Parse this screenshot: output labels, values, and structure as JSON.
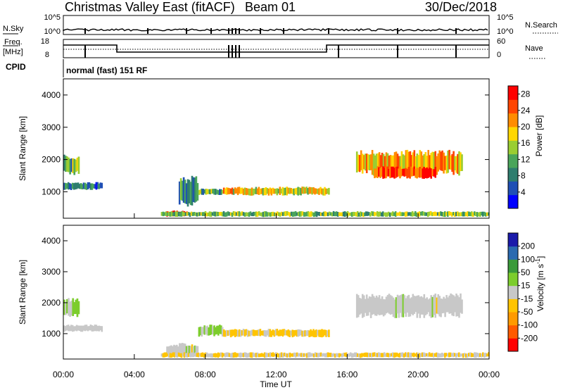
{
  "header": {
    "title": "Christmas Valley East (fitACF)",
    "beam": "Beam 01",
    "date": "30/Dec/2018"
  },
  "noise_panel": {
    "left_label": "N.Sky",
    "right_label": "N.Search",
    "left_ticks": [
      "10^5",
      "10^0"
    ],
    "right_ticks": [
      "10^5",
      "10^0"
    ]
  },
  "freq_panel": {
    "left_label_1": "Freq.",
    "left_label_2": "[MHz]",
    "right_label": "Nave",
    "left_ticks": [
      "18",
      "8"
    ],
    "right_ticks": [
      "60",
      "0"
    ]
  },
  "cpid": {
    "label": "CPID",
    "mode_text": "normal (fast) 151 RF"
  },
  "colors": {
    "power_scale": [
      "#0000ff",
      "#1f4fb5",
      "#2e7d6e",
      "#4aa55a",
      "#9acd32",
      "#ffd700",
      "#ff8c00",
      "#ff4500",
      "#ff0000"
    ],
    "velocity_scale": [
      "#ff0000",
      "#ff5a00",
      "#ff9a00",
      "#ffc400",
      "#c8c8c8",
      "#7ccd2c",
      "#3a9a3a",
      "#2a6ab0",
      "#1a1aaa"
    ],
    "ground_scatter": "#b4b4b4"
  },
  "chart_data": [
    {
      "type": "heatmap",
      "name": "power",
      "xlabel": "",
      "ylabel": "Slant Range [km]",
      "xlim": [
        0,
        24
      ],
      "ylim": [
        180,
        4500
      ],
      "yticks": [
        "1000",
        "2000",
        "3000",
        "4000"
      ],
      "colorbar_label": "Power [dB]",
      "colorbar_ticks": [
        "4",
        "8",
        "12",
        "16",
        "20",
        "24",
        "28"
      ],
      "colorbar_range": [
        0,
        30
      ],
      "regions": [
        {
          "t0": 0.0,
          "t1": 0.9,
          "r0": 1500,
          "r1": 2150,
          "v": 12
        },
        {
          "t0": 0.0,
          "t1": 2.2,
          "r0": 1050,
          "r1": 1300,
          "v": 8
        },
        {
          "t0": 5.8,
          "t1": 7.0,
          "r0": 230,
          "r1": 420,
          "v": 28
        },
        {
          "t0": 6.5,
          "t1": 7.6,
          "r0": 500,
          "r1": 1500,
          "v": 8
        },
        {
          "t0": 7.6,
          "t1": 9.0,
          "r0": 900,
          "r1": 1100,
          "v": 12
        },
        {
          "t0": 9.0,
          "t1": 15.0,
          "r0": 880,
          "r1": 1160,
          "v": 18
        },
        {
          "t0": 5.5,
          "t1": 24.0,
          "r0": 220,
          "r1": 400,
          "v": 14
        },
        {
          "t0": 16.5,
          "t1": 22.5,
          "r0": 1500,
          "r1": 2300,
          "v": 20
        },
        {
          "t0": 17.5,
          "t1": 21.0,
          "r0": 1400,
          "r1": 1800,
          "v": 26
        }
      ]
    },
    {
      "type": "heatmap",
      "name": "velocity",
      "xlabel": "Time UT",
      "ylabel": "Slant Range [km]",
      "xlim": [
        0,
        24
      ],
      "ylim": [
        180,
        4500
      ],
      "yticks": [
        "1000",
        "2000",
        "3000",
        "4000"
      ],
      "xticks": [
        "00:00",
        "04:00",
        "08:00",
        "12:00",
        "16:00",
        "20:00",
        "00:00"
      ],
      "colorbar_label": "Velocity [m s^-1]",
      "colorbar_ticks": [
        "200",
        "100",
        "50",
        "15",
        "-15",
        "-50",
        "-100",
        "-200"
      ],
      "colorbar_range": [
        -250,
        250
      ],
      "regions": [
        {
          "t0": 0.0,
          "t1": 0.9,
          "r0": 1500,
          "r1": 2150,
          "v": 40
        },
        {
          "t0": 0.0,
          "t1": 2.2,
          "r0": 1050,
          "r1": 1300,
          "v": 0
        },
        {
          "t0": 5.8,
          "t1": 7.6,
          "r0": 230,
          "r1": 700,
          "v": 0
        },
        {
          "t0": 7.6,
          "t1": 9.0,
          "r0": 900,
          "r1": 1300,
          "v": 40
        },
        {
          "t0": 9.0,
          "t1": 15.0,
          "r0": 880,
          "r1": 1160,
          "v": -40
        },
        {
          "t0": 5.5,
          "t1": 24.0,
          "r0": 220,
          "r1": 400,
          "v": -30
        },
        {
          "t0": 16.5,
          "t1": 22.5,
          "r0": 1500,
          "r1": 2300,
          "v": 0
        }
      ]
    }
  ]
}
